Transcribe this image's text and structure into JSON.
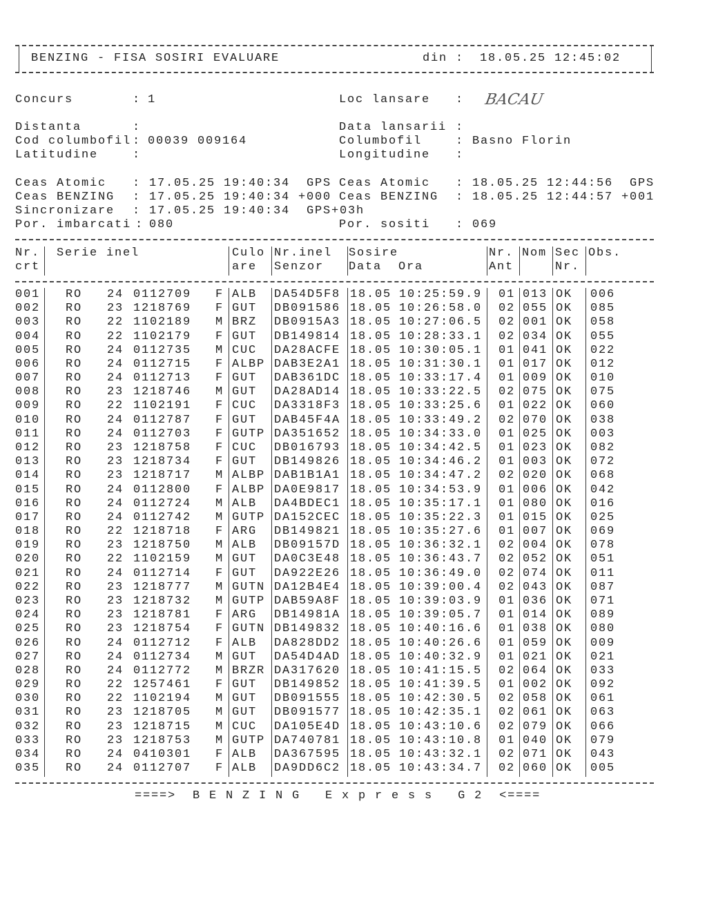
{
  "header": {
    "title": "BENZING - FISA SOSIRI EVALUARE",
    "din_label": "din :",
    "din_value": "18.05.25 12:45:02"
  },
  "info": {
    "concurs": {
      "label": "Concurs",
      "value": "1"
    },
    "loc_lansare": {
      "label": "Loc lansare",
      "value": "BACAU"
    },
    "distanta": {
      "label": "Distanta",
      "value": ""
    },
    "data_lansarii": {
      "label": "Data lansarii",
      "value": ""
    },
    "cod_columbofil": {
      "label": "Cod columbofil",
      "value": "00039 009164"
    },
    "columbofil": {
      "label": "Columbofil",
      "value": "Basno Florin"
    },
    "latitudine": {
      "label": "Latitudine",
      "value": ""
    },
    "longitudine": {
      "label": "Longitudine",
      "value": ""
    },
    "ceas_atomic_start": {
      "label": "Ceas Atomic",
      "value": "17.05.25 19:40:34  GPS"
    },
    "ceas_atomic_end": {
      "label": "Ceas Atomic",
      "value": "18.05.25 12:44:56  GPS"
    },
    "ceas_benzing_start": {
      "label": "Ceas BENZING",
      "value": "17.05.25 19:40:34 +000"
    },
    "ceas_benzing_end": {
      "label": "Ceas BENZING",
      "value": "18.05.25 12:44:57 +001"
    },
    "sincronizare": {
      "label": "Sincronizare",
      "value": "17.05.25 19:40:34  GPS+03h"
    },
    "por_imbarcati": {
      "label": "Por. imbarcati",
      "value": "080"
    },
    "por_sositi": {
      "label": "Por. sositi",
      "value": "069"
    }
  },
  "table": {
    "headers": {
      "nr_crt": [
        "Nr.",
        "crt"
      ],
      "serie_inel": "Serie inel",
      "culoare": [
        "Culo",
        "are"
      ],
      "nr_inel_senzor": [
        "Nr.inel",
        "Senzor"
      ],
      "sosire": [
        "Sosire",
        "Data  Ora"
      ],
      "nr_ant": [
        "Nr.",
        "Ant"
      ],
      "nom": "Nom",
      "sec_nr": [
        "Sec",
        "Nr."
      ],
      "obs": "Obs."
    },
    "rows": [
      [
        "001",
        "RO",
        "24",
        "0112709",
        "F",
        "ALB",
        "DA54D5F8",
        "18.05",
        "10:25:59.9",
        "01",
        "013",
        "OK",
        "006"
      ],
      [
        "002",
        "RO",
        "23",
        "1218769",
        "F",
        "GUT",
        "DB091586",
        "18.05",
        "10:26:58.0",
        "02",
        "055",
        "OK",
        "085"
      ],
      [
        "003",
        "RO",
        "22",
        "1102189",
        "M",
        "BRZ",
        "DB0915A3",
        "18.05",
        "10:27:06.5",
        "02",
        "001",
        "OK",
        "058"
      ],
      [
        "004",
        "RO",
        "22",
        "1102179",
        "F",
        "GUT",
        "DB149814",
        "18.05",
        "10:28:33.1",
        "02",
        "034",
        "OK",
        "055"
      ],
      [
        "005",
        "RO",
        "24",
        "0112735",
        "M",
        "CUC",
        "DA28ACFE",
        "18.05",
        "10:30:05.1",
        "01",
        "041",
        "OK",
        "022"
      ],
      [
        "006",
        "RO",
        "24",
        "0112715",
        "F",
        "ALBP",
        "DAB3E2A1",
        "18.05",
        "10:31:30.1",
        "01",
        "017",
        "OK",
        "012"
      ],
      [
        "007",
        "RO",
        "24",
        "0112713",
        "F",
        "GUT",
        "DAB361DC",
        "18.05",
        "10:33:17.4",
        "01",
        "009",
        "OK",
        "010"
      ],
      [
        "008",
        "RO",
        "23",
        "1218746",
        "M",
        "GUT",
        "DA28AD14",
        "18.05",
        "10:33:22.5",
        "02",
        "075",
        "OK",
        "075"
      ],
      [
        "009",
        "RO",
        "22",
        "1102191",
        "F",
        "CUC",
        "DA3318F3",
        "18.05",
        "10:33:25.6",
        "01",
        "022",
        "OK",
        "060"
      ],
      [
        "010",
        "RO",
        "24",
        "0112787",
        "F",
        "GUT",
        "DAB45F4A",
        "18.05",
        "10:33:49.2",
        "02",
        "070",
        "OK",
        "038"
      ],
      [
        "011",
        "RO",
        "24",
        "0112703",
        "F",
        "GUTP",
        "DA351652",
        "18.05",
        "10:34:33.0",
        "01",
        "025",
        "OK",
        "003"
      ],
      [
        "012",
        "RO",
        "23",
        "1218758",
        "F",
        "CUC",
        "DB016793",
        "18.05",
        "10:34:42.5",
        "01",
        "023",
        "OK",
        "082"
      ],
      [
        "013",
        "RO",
        "23",
        "1218734",
        "F",
        "GUT",
        "DB149826",
        "18.05",
        "10:34:46.2",
        "01",
        "003",
        "OK",
        "072"
      ],
      [
        "014",
        "RO",
        "23",
        "1218717",
        "M",
        "ALBP",
        "DAB1B1A1",
        "18.05",
        "10:34:47.2",
        "02",
        "020",
        "OK",
        "068"
      ],
      [
        "015",
        "RO",
        "24",
        "0112800",
        "F",
        "ALBP",
        "DA0E9817",
        "18.05",
        "10:34:53.9",
        "01",
        "006",
        "OK",
        "042"
      ],
      [
        "016",
        "RO",
        "24",
        "0112724",
        "M",
        "ALB",
        "DA4BDEC1",
        "18.05",
        "10:35:17.1",
        "01",
        "080",
        "OK",
        "016"
      ],
      [
        "017",
        "RO",
        "24",
        "0112742",
        "M",
        "GUTP",
        "DA152CEC",
        "18.05",
        "10:35:22.3",
        "01",
        "015",
        "OK",
        "025"
      ],
      [
        "018",
        "RO",
        "22",
        "1218718",
        "F",
        "ARG",
        "DB149821",
        "18.05",
        "10:35:27.6",
        "01",
        "007",
        "OK",
        "069"
      ],
      [
        "019",
        "RO",
        "23",
        "1218750",
        "M",
        "ALB",
        "DB09157D",
        "18.05",
        "10:36:32.1",
        "02",
        "004",
        "OK",
        "078"
      ],
      [
        "020",
        "RO",
        "22",
        "1102159",
        "M",
        "GUT",
        "DA0C3E48",
        "18.05",
        "10:36:43.7",
        "02",
        "052",
        "OK",
        "051"
      ],
      [
        "021",
        "RO",
        "24",
        "0112714",
        "F",
        "GUT",
        "DA922E26",
        "18.05",
        "10:36:49.0",
        "02",
        "074",
        "OK",
        "011"
      ],
      [
        "022",
        "RO",
        "23",
        "1218777",
        "M",
        "GUTN",
        "DA12B4E4",
        "18.05",
        "10:39:00.4",
        "02",
        "043",
        "OK",
        "087"
      ],
      [
        "023",
        "RO",
        "23",
        "1218732",
        "M",
        "GUTP",
        "DAB59A8F",
        "18.05",
        "10:39:03.9",
        "01",
        "036",
        "OK",
        "071"
      ],
      [
        "024",
        "RO",
        "23",
        "1218781",
        "F",
        "ARG",
        "DB14981A",
        "18.05",
        "10:39:05.7",
        "01",
        "014",
        "OK",
        "089"
      ],
      [
        "025",
        "RO",
        "23",
        "1218754",
        "F",
        "GUTN",
        "DB149832",
        "18.05",
        "10:40:16.6",
        "01",
        "038",
        "OK",
        "080"
      ],
      [
        "026",
        "RO",
        "24",
        "0112712",
        "F",
        "ALB",
        "DA828DD2",
        "18.05",
        "10:40:26.6",
        "01",
        "059",
        "OK",
        "009"
      ],
      [
        "027",
        "RO",
        "24",
        "0112734",
        "M",
        "GUT",
        "DA54D4AD",
        "18.05",
        "10:40:32.9",
        "01",
        "021",
        "OK",
        "021"
      ],
      [
        "028",
        "RO",
        "24",
        "0112772",
        "M",
        "BRZR",
        "DA317620",
        "18.05",
        "10:41:15.5",
        "02",
        "064",
        "OK",
        "033"
      ],
      [
        "029",
        "RO",
        "22",
        "1257461",
        "F",
        "GUT",
        "DB149852",
        "18.05",
        "10:41:39.5",
        "01",
        "002",
        "OK",
        "092"
      ],
      [
        "030",
        "RO",
        "22",
        "1102194",
        "M",
        "GUT",
        "DB091555",
        "18.05",
        "10:42:30.5",
        "02",
        "058",
        "OK",
        "061"
      ],
      [
        "031",
        "RO",
        "23",
        "1218705",
        "M",
        "GUT",
        "DB091577",
        "18.05",
        "10:42:35.1",
        "02",
        "061",
        "OK",
        "063"
      ],
      [
        "032",
        "RO",
        "23",
        "1218715",
        "M",
        "CUC",
        "DA105E4D",
        "18.05",
        "10:43:10.6",
        "02",
        "079",
        "OK",
        "066"
      ],
      [
        "033",
        "RO",
        "23",
        "1218753",
        "M",
        "GUTP",
        "DA740781",
        "18.05",
        "10:43:10.8",
        "01",
        "040",
        "OK",
        "079"
      ],
      [
        "034",
        "RO",
        "24",
        "0410301",
        "F",
        "ALB",
        "DA367595",
        "18.05",
        "10:43:32.1",
        "02",
        "071",
        "OK",
        "043"
      ],
      [
        "035",
        "RO",
        "24",
        "0112707",
        "F",
        "ALB",
        "DA9DD6C2",
        "18.05",
        "10:43:34.7",
        "02",
        "060",
        "OK",
        "005"
      ]
    ]
  },
  "footer": {
    "text": "====>  B E N Z I N G   E x p r e s s   G 2  <===="
  }
}
